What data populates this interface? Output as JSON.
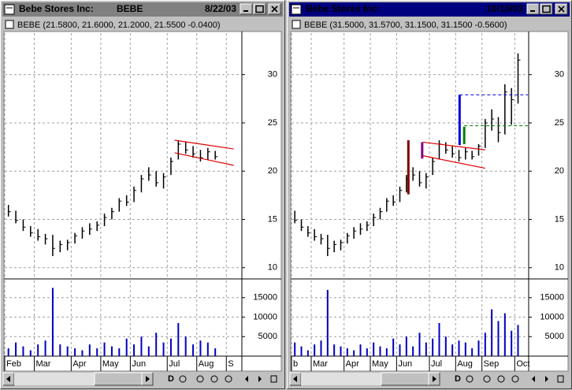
{
  "windows": [
    {
      "title": "Bebe Stores Inc:",
      "symbol": "BEBE",
      "date": "8/22/03",
      "active": false,
      "info": "BEBE (21.5800, 21.6000, 21.2000, 21.5500 -0.0400)",
      "toolbar_label": "D",
      "chart_data": [
        {
          "type": "ohlc",
          "color": "#000000",
          "grid": true,
          "high": [
            16.5,
            15.9,
            15.0,
            14.3,
            14.0,
            13.5,
            13.4,
            12.8,
            12.9,
            13.6,
            14.2,
            14.6,
            14.8,
            15.6,
            16.2,
            17.2,
            17.5,
            18.4,
            19.6,
            20.4,
            20.0,
            19.8,
            21.4,
            23.2,
            23.0,
            22.6,
            22.2,
            22.4,
            22.1,
            null,
            null,
            null
          ],
          "low": [
            15.3,
            14.6,
            13.8,
            13.2,
            12.8,
            12.4,
            11.2,
            11.6,
            11.8,
            12.5,
            13.0,
            13.4,
            13.8,
            14.3,
            15.0,
            15.8,
            16.4,
            16.8,
            17.8,
            19.0,
            18.4,
            18.2,
            19.6,
            21.2,
            21.8,
            21.4,
            21.0,
            21.2,
            21.2,
            null,
            null,
            null
          ],
          "close": [
            15.8,
            14.9,
            14.2,
            13.6,
            13.2,
            13.0,
            12.0,
            12.4,
            12.6,
            13.3,
            13.8,
            14.0,
            14.4,
            15.2,
            15.8,
            16.9,
            16.8,
            18.0,
            19.2,
            19.6,
            18.8,
            19.4,
            21.0,
            22.8,
            22.2,
            21.8,
            21.4,
            22.0,
            21.5,
            null,
            null,
            null
          ],
          "ylim": [
            9,
            34.3
          ],
          "yticks": [
            10,
            15,
            20,
            25,
            30
          ],
          "trendlines": [
            {
              "x0": 22.5,
              "y0": 23.2,
              "x1": 30.5,
              "y1": 22.3,
              "color": "#e00000"
            },
            {
              "x0": 22.5,
              "y0": 21.9,
              "x1": 30.5,
              "y1": 20.6,
              "color": "#e00000"
            }
          ],
          "markers": [],
          "levels": []
        },
        {
          "type": "volume",
          "color": "#0000c0",
          "grid": true,
          "categories": [
            "Feb",
            null,
            null,
            null,
            "Mar",
            null,
            null,
            null,
            null,
            "Apr",
            null,
            null,
            null,
            "May",
            null,
            null,
            null,
            "Jun",
            null,
            null,
            null,
            null,
            "Jul",
            null,
            null,
            null,
            "Aug",
            null,
            null,
            null,
            "S",
            null
          ],
          "values": [
            2000,
            3500,
            2500,
            1500,
            3000,
            4000,
            17500,
            3000,
            2500,
            2000,
            1500,
            3000,
            2000,
            3500,
            2500,
            2000,
            4500,
            3000,
            5000,
            2500,
            6000,
            3500,
            4500,
            8500,
            5000,
            3000,
            4000,
            3500,
            2000,
            null,
            null,
            null
          ],
          "ylim": [
            0,
            19000
          ],
          "yticks": [
            5000,
            10000,
            15000
          ]
        }
      ]
    },
    {
      "title": "Bebe Stores Inc:",
      "date": "10/10/03",
      "active": true,
      "info": "BEBE (31.5000, 31.5700, 31.1500, 31.1500 -0.5600)",
      "toolbar_label": "D",
      "chart_data": [
        {
          "type": "ohlc",
          "color": "#000000",
          "grid": true,
          "high": [
            15.9,
            15.0,
            14.3,
            14.0,
            13.5,
            13.4,
            12.8,
            12.9,
            13.6,
            14.2,
            14.6,
            14.8,
            15.6,
            16.2,
            17.2,
            17.5,
            18.4,
            19.6,
            20.4,
            20.0,
            19.8,
            21.4,
            23.2,
            23.0,
            22.6,
            22.2,
            22.4,
            22.1,
            22.8,
            25.4,
            26.4,
            25.6,
            29.0,
            28.6,
            32.2,
            null
          ],
          "low": [
            14.6,
            13.8,
            13.2,
            12.8,
            12.4,
            11.2,
            11.6,
            11.8,
            12.5,
            13.0,
            13.4,
            13.8,
            14.3,
            15.0,
            15.8,
            16.4,
            16.8,
            17.8,
            19.0,
            18.4,
            18.2,
            19.6,
            21.2,
            21.8,
            21.4,
            21.0,
            21.2,
            21.2,
            21.6,
            22.4,
            24.2,
            23.0,
            23.8,
            24.8,
            27.0,
            null
          ],
          "close": [
            14.9,
            14.2,
            13.6,
            13.2,
            13.0,
            12.0,
            12.4,
            12.6,
            13.3,
            13.8,
            14.0,
            14.4,
            15.2,
            15.8,
            16.9,
            16.8,
            18.0,
            19.2,
            19.6,
            18.8,
            19.4,
            21.0,
            22.8,
            22.2,
            21.8,
            21.4,
            22.0,
            21.5,
            22.6,
            25.0,
            25.4,
            24.0,
            28.2,
            27.4,
            31.5,
            null
          ],
          "ylim": [
            9,
            34.3
          ],
          "yticks": [
            10,
            15,
            20,
            25,
            30
          ],
          "trendlines": [
            {
              "x0": 19.5,
              "y0": 23.0,
              "x1": 29,
              "y1": 22.2,
              "color": "#e00000"
            },
            {
              "x0": 19.5,
              "y0": 21.6,
              "x1": 29,
              "y1": 20.3,
              "color": "#e00000"
            }
          ],
          "markers": [
            {
              "x": 17.3,
              "low": 17.6,
              "high": 23.2,
              "color": "#800000"
            },
            {
              "x": 19.4,
              "low": 21.3,
              "high": 23.0,
              "color": "#800080"
            },
            {
              "x": 25.1,
              "low": 22.7,
              "high": 27.9,
              "color": "#0000e0"
            },
            {
              "x": 25.8,
              "low": 22.8,
              "high": 24.6,
              "color": "#008000"
            }
          ],
          "levels": [
            {
              "value": 27.9,
              "from": 25.1,
              "color": "#0000e0"
            },
            {
              "value": 24.7,
              "from": 25.8,
              "color": "#008000"
            }
          ]
        },
        {
          "type": "volume",
          "color": "#0000c0",
          "grid": true,
          "categories": [
            "b",
            null,
            null,
            "Mar",
            null,
            null,
            null,
            null,
            "Apr",
            null,
            null,
            null,
            "May",
            null,
            null,
            null,
            "Jun",
            null,
            null,
            null,
            null,
            "Jul",
            null,
            null,
            null,
            "Aug",
            null,
            null,
            null,
            "Sep",
            null,
            null,
            null,
            null,
            "Oct",
            null
          ],
          "values": [
            3500,
            2500,
            1500,
            3000,
            4000,
            17000,
            3000,
            2500,
            2000,
            1500,
            3000,
            2000,
            3500,
            2500,
            2000,
            4500,
            3000,
            5000,
            2500,
            6000,
            3500,
            4500,
            8500,
            5000,
            3000,
            4000,
            3500,
            2000,
            4000,
            6000,
            12000,
            9000,
            11000,
            6500,
            8000,
            null
          ],
          "ylim": [
            0,
            19000
          ],
          "yticks": [
            5000,
            10000,
            15000
          ]
        }
      ]
    }
  ]
}
